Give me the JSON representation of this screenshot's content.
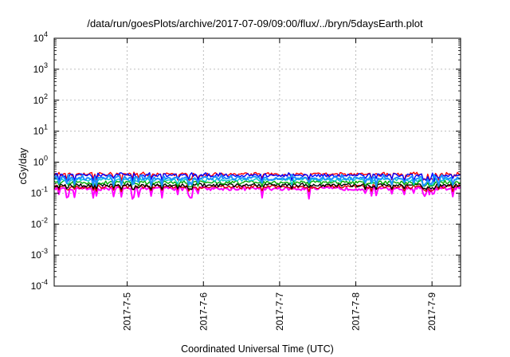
{
  "chart_data": {
    "type": "line",
    "title": "/data/run/goesPlots/archive/2017-07-09/09:00/flux/../bryn/5daysEarth.plot",
    "xlabel": "Coordinated Universal Time (UTC)",
    "ylabel": "cGy/day",
    "yscale": "log",
    "ylim": [
      0.0001,
      10000
    ],
    "xlim": [
      "2017-07-04 01:00",
      "2017-07-09 09:00"
    ],
    "grid": true,
    "x_ticks": [
      "2017-7-5",
      "2017-7-6",
      "2017-7-7",
      "2017-7-8",
      "2017-7-9"
    ],
    "y_ticks": [
      {
        "base": "10",
        "exp": "4",
        "value": 10000
      },
      {
        "base": "10",
        "exp": "3",
        "value": 1000
      },
      {
        "base": "10",
        "exp": "2",
        "value": 100
      },
      {
        "base": "10",
        "exp": "1",
        "value": 10
      },
      {
        "base": "10",
        "exp": "0",
        "value": 1
      },
      {
        "base": "10",
        "exp": "-1",
        "value": 0.1
      },
      {
        "base": "10",
        "exp": "-2",
        "value": 0.01
      },
      {
        "base": "10",
        "exp": "-3",
        "value": 0.001
      },
      {
        "base": "10",
        "exp": "-4",
        "value": 0.0001
      }
    ],
    "series": [
      {
        "color": "#ff00ff",
        "baseline": 0.14,
        "min": 0.065,
        "max": 0.17
      },
      {
        "color": "#d40000",
        "baseline": 0.16,
        "min": 0.11,
        "max": 0.19
      },
      {
        "color": "#000000",
        "baseline": 0.18,
        "min": 0.13,
        "max": 0.21
      },
      {
        "color": "#00aa00",
        "baseline": 0.22,
        "min": 0.16,
        "max": 0.26
      },
      {
        "color": "#00cccc",
        "baseline": 0.27,
        "min": 0.18,
        "max": 0.33
      },
      {
        "color": "#ff0000",
        "baseline": 0.4,
        "min": 0.24,
        "max": 0.48
      },
      {
        "color": "#0000ff",
        "baseline": 0.38,
        "min": 0.23,
        "max": 0.46
      },
      {
        "color": "#1e90ff",
        "baseline": 0.3,
        "min": 0.16,
        "max": 0.4
      }
    ]
  }
}
